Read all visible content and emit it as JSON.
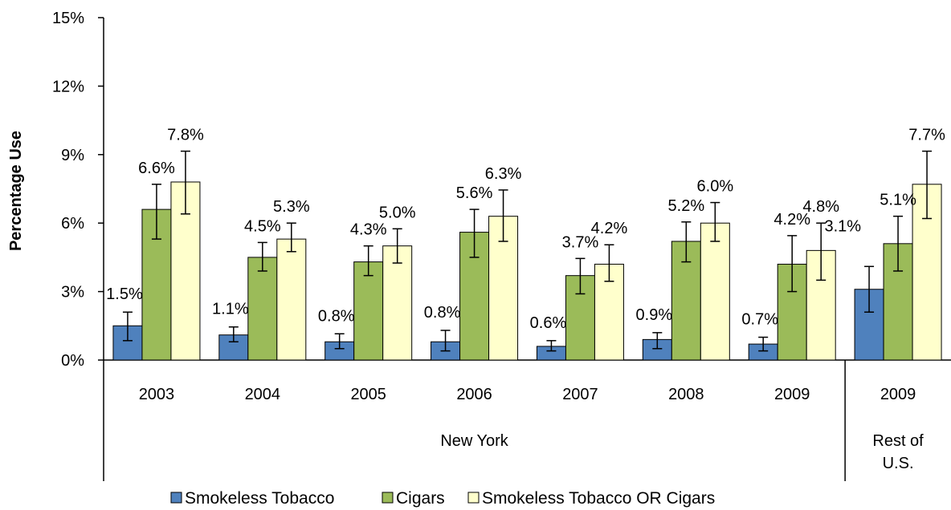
{
  "chart_data": {
    "type": "bar",
    "ylabel": "Percentage  Use",
    "ylim": [
      0,
      15
    ],
    "yticks": [
      "0%",
      "3%",
      "6%",
      "9%",
      "12%",
      "15%"
    ],
    "ytick_values": [
      0,
      3,
      6,
      9,
      12,
      15
    ],
    "grid": false,
    "legend_position": "bottom",
    "categories": [
      "2003",
      "2004",
      "2005",
      "2006",
      "2007",
      "2008",
      "2009",
      "2009"
    ],
    "groups": [
      {
        "label": "New York",
        "category_count": 7
      },
      {
        "label": "Rest of U.S.",
        "label_lines": [
          "Rest of",
          "U.S."
        ],
        "category_count": 1
      }
    ],
    "series": [
      {
        "name": "Smokeless Tobacco",
        "color": "#4F81BD",
        "values": [
          1.5,
          1.1,
          0.8,
          0.8,
          0.6,
          0.9,
          0.7,
          3.1
        ],
        "labels": [
          "1.5%",
          "1.1%",
          "0.8%",
          "0.8%",
          "0.6%",
          "0.9%",
          "0.7%",
          "3.1%"
        ],
        "err_low": [
          0.85,
          0.8,
          0.5,
          0.4,
          0.4,
          0.5,
          0.4,
          2.1
        ],
        "err_high": [
          2.1,
          1.45,
          1.15,
          1.3,
          0.85,
          1.2,
          1.0,
          4.1
        ]
      },
      {
        "name": "Cigars",
        "color": "#9BBB59",
        "values": [
          6.6,
          4.5,
          4.3,
          5.6,
          3.7,
          5.2,
          4.2,
          5.1
        ],
        "labels": [
          "6.6%",
          "4.5%",
          "4.3%",
          "5.6%",
          "3.7%",
          "5.2%",
          "4.2%",
          "5.1%"
        ],
        "err_low": [
          5.3,
          3.9,
          3.7,
          4.5,
          2.9,
          4.3,
          3.0,
          3.9
        ],
        "err_high": [
          7.7,
          5.15,
          5.0,
          6.6,
          4.45,
          6.05,
          5.45,
          6.3
        ]
      },
      {
        "name": "Smokeless Tobacco OR Cigars",
        "color": "#FFFFCC",
        "values": [
          7.8,
          5.3,
          5.0,
          6.3,
          4.2,
          6.0,
          4.8,
          7.7
        ],
        "labels": [
          "7.8%",
          "5.3%",
          "5.0%",
          "6.3%",
          "4.2%",
          "6.0%",
          "4.8%",
          "7.7%"
        ],
        "err_low": [
          6.4,
          4.75,
          4.25,
          5.2,
          3.45,
          5.2,
          3.5,
          6.2
        ],
        "err_high": [
          9.15,
          6.0,
          5.75,
          7.45,
          5.05,
          6.9,
          6.0,
          9.15
        ]
      }
    ]
  }
}
